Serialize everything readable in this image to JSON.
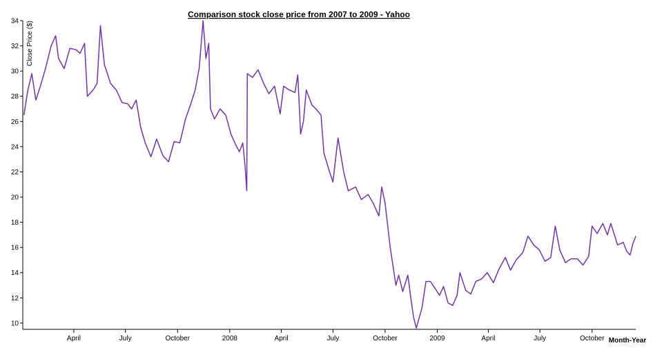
{
  "chart_data": {
    "type": "line",
    "title": "Comparison stock close price from 2007 to 2009 - Yahoo",
    "x_label": "Month-Year",
    "y_label": "Close Price ($)",
    "xlim": [
      "2007-01-01",
      "2009-12-17"
    ],
    "xticks": [
      {
        "value": "2007-04-01",
        "label": "April"
      },
      {
        "value": "2007-07-01",
        "label": "July"
      },
      {
        "value": "2007-10-01",
        "label": "October"
      },
      {
        "value": "2008-01-01",
        "label": "2008"
      },
      {
        "value": "2008-04-01",
        "label": "April"
      },
      {
        "value": "2008-07-01",
        "label": "July"
      },
      {
        "value": "2008-10-01",
        "label": "October"
      },
      {
        "value": "2009-01-01",
        "label": "2009"
      },
      {
        "value": "2009-04-01",
        "label": "April"
      },
      {
        "value": "2009-07-01",
        "label": "July"
      },
      {
        "value": "2009-10-01",
        "label": "October"
      }
    ],
    "ylim": [
      9.5,
      34
    ],
    "yticks": [
      10,
      12,
      14,
      16,
      18,
      20,
      22,
      24,
      26,
      28,
      30,
      32,
      34
    ],
    "series": [
      {
        "name": "Yahoo",
        "color": "#6f35a5",
        "x": [
          "2007-01-03",
          "2007-01-10",
          "2007-01-17",
          "2007-01-24",
          "2007-02-01",
          "2007-02-10",
          "2007-02-20",
          "2007-02-28",
          "2007-03-05",
          "2007-03-15",
          "2007-03-25",
          "2007-04-05",
          "2007-04-12",
          "2007-04-20",
          "2007-04-25",
          "2007-05-05",
          "2007-05-12",
          "2007-05-18",
          "2007-05-25",
          "2007-06-05",
          "2007-06-15",
          "2007-06-25",
          "2007-07-05",
          "2007-07-12",
          "2007-07-20",
          "2007-07-28",
          "2007-08-05",
          "2007-08-15",
          "2007-08-25",
          "2007-09-05",
          "2007-09-15",
          "2007-09-25",
          "2007-10-05",
          "2007-10-15",
          "2007-10-25",
          "2007-11-01",
          "2007-11-08",
          "2007-11-15",
          "2007-11-20",
          "2007-11-25",
          "2007-11-28",
          "2007-12-05",
          "2007-12-15",
          "2007-12-25",
          "2008-01-03",
          "2008-01-12",
          "2008-01-18",
          "2008-01-24",
          "2008-01-28",
          "2008-01-31",
          "2008-02-01",
          "2008-02-10",
          "2008-02-20",
          "2008-03-01",
          "2008-03-10",
          "2008-03-20",
          "2008-03-30",
          "2008-04-05",
          "2008-04-15",
          "2008-04-25",
          "2008-04-30",
          "2008-05-05",
          "2008-05-10",
          "2008-05-15",
          "2008-05-25",
          "2008-06-01",
          "2008-06-10",
          "2008-06-15",
          "2008-06-25",
          "2008-07-01",
          "2008-07-10",
          "2008-07-20",
          "2008-07-28",
          "2008-08-10",
          "2008-08-20",
          "2008-09-01",
          "2008-09-10",
          "2008-09-20",
          "2008-09-25",
          "2008-10-01",
          "2008-10-10",
          "2008-10-20",
          "2008-10-25",
          "2008-11-01",
          "2008-11-10",
          "2008-11-15",
          "2008-11-20",
          "2008-11-25",
          "2008-12-05",
          "2008-12-12",
          "2008-12-20",
          "2009-01-05",
          "2009-01-12",
          "2009-01-20",
          "2009-01-28",
          "2009-02-05",
          "2009-02-10",
          "2009-02-20",
          "2009-03-01",
          "2009-03-10",
          "2009-03-20",
          "2009-03-30",
          "2009-04-10",
          "2009-04-20",
          "2009-05-01",
          "2009-05-10",
          "2009-05-20",
          "2009-06-01",
          "2009-06-10",
          "2009-06-20",
          "2009-06-30",
          "2009-07-10",
          "2009-07-20",
          "2009-07-28",
          "2009-08-05",
          "2009-08-15",
          "2009-08-25",
          "2009-09-05",
          "2009-09-15",
          "2009-09-25",
          "2009-10-01",
          "2009-10-10",
          "2009-10-20",
          "2009-10-28",
          "2009-11-03",
          "2009-11-15",
          "2009-11-25",
          "2009-12-01",
          "2009-12-07",
          "2009-12-12",
          "2009-12-17"
        ],
        "values": [
          26.5,
          28.5,
          29.8,
          27.7,
          28.8,
          30.2,
          32.0,
          32.8,
          31.0,
          30.2,
          31.8,
          31.7,
          31.4,
          32.2,
          28.0,
          28.5,
          29.0,
          33.6,
          30.5,
          29.0,
          28.5,
          27.5,
          27.4,
          27.0,
          27.7,
          25.5,
          24.3,
          23.2,
          24.6,
          23.3,
          22.8,
          24.4,
          24.3,
          26.2,
          27.5,
          28.5,
          30.2,
          34.0,
          31.0,
          32.2,
          27.0,
          26.2,
          27.0,
          26.5,
          25.0,
          24.1,
          23.6,
          24.3,
          22.5,
          20.5,
          29.8,
          29.5,
          30.1,
          29.0,
          28.2,
          28.8,
          26.6,
          28.8,
          28.5,
          28.3,
          29.7,
          25.0,
          26.0,
          28.5,
          27.3,
          27.0,
          26.5,
          23.5,
          22.0,
          21.2,
          24.7,
          22.0,
          20.5,
          20.8,
          19.8,
          20.2,
          19.5,
          18.5,
          20.8,
          19.5,
          16.0,
          13.0,
          13.8,
          12.5,
          13.8,
          12.1,
          10.5,
          9.6,
          11.2,
          13.3,
          13.3,
          12.2,
          12.9,
          11.6,
          11.4,
          12.2,
          14.0,
          12.6,
          12.3,
          13.3,
          13.5,
          14.0,
          13.2,
          14.3,
          15.2,
          14.2,
          15.0,
          15.6,
          16.9,
          16.2,
          15.8,
          14.9,
          15.2,
          17.7,
          15.8,
          14.8,
          15.1,
          15.1,
          14.6,
          15.3,
          17.7,
          17.1,
          17.9,
          17.0,
          17.9,
          16.2,
          16.4,
          15.7,
          15.4,
          16.3,
          16.9
        ]
      }
    ]
  }
}
